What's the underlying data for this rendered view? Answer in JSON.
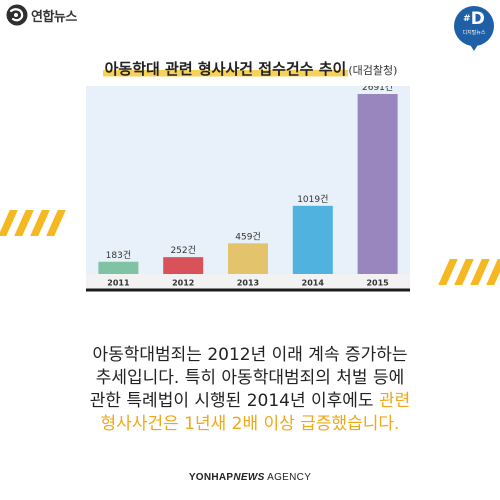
{
  "header": {
    "brand": "연합뉴스",
    "badge_mark": "D",
    "badge_hash": "#",
    "badge_sub": "디지털뉴스"
  },
  "title": {
    "main": "아동학대 관련 형사사건 접수건수 추이",
    "sub": "(대검찰청)"
  },
  "chart_data": {
    "type": "bar",
    "categories": [
      "2011",
      "2012",
      "2013",
      "2014",
      "2015"
    ],
    "values": [
      183,
      252,
      459,
      1019,
      2691
    ],
    "data_labels": [
      "183건",
      "252건",
      "459건",
      "1019건",
      "2691건"
    ],
    "colors": [
      "#7fc3a4",
      "#d9525a",
      "#e3c46c",
      "#4fb2df",
      "#9a86bf"
    ],
    "ylim": [
      0,
      2691
    ],
    "grid": false,
    "background": "#e8f1f9"
  },
  "body": {
    "line1": "아동학대범죄는 2012년 이래 계속 증가하는",
    "line2": "추세입니다. 특히 아동학대범죄의 처벌 등에",
    "line3": "관한 특례법이 시행된 2014년 이후에도 ",
    "line3_highlight": "관련",
    "line4_highlight": "형사사건은 1년새 2배 이상 급증했습니다."
  },
  "footer": {
    "brand_bold": "YONHAP",
    "brand_italic": "NEWS",
    "brand_tail": " AGENCY"
  },
  "colors": {
    "accent": "#f5b820",
    "highlight_text": "#f0a818",
    "badge": "#1f5fa6"
  }
}
